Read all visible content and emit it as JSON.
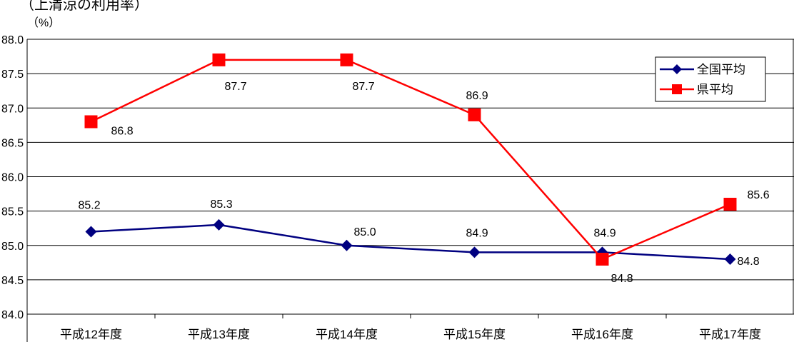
{
  "chart_data": {
    "type": "line",
    "title": "（上清涼の利用率）",
    "ylabel": "（%）",
    "xlabel": "",
    "categories": [
      "平成12年度",
      "平成13年度",
      "平成14年度",
      "平成15年度",
      "平成16年度",
      "平成17年度"
    ],
    "ylim": [
      84.0,
      88.0
    ],
    "yticks": [
      "84.0",
      "84.5",
      "85.0",
      "85.5",
      "86.0",
      "86.5",
      "87.0",
      "87.5",
      "88.0"
    ],
    "grid": true,
    "legend_position": "top-right",
    "series": [
      {
        "name": "全国平均",
        "values": [
          85.2,
          85.3,
          85.0,
          84.9,
          84.9,
          84.8
        ],
        "labels": [
          "85.2",
          "85.3",
          "85.0",
          "84.9",
          "84.9",
          "84.8"
        ],
        "color": "#000080",
        "marker": "diamond"
      },
      {
        "name": "県平均",
        "values": [
          86.8,
          87.7,
          87.7,
          86.9,
          84.8,
          85.6
        ],
        "labels": [
          "86.8",
          "87.7",
          "87.7",
          "86.9",
          "84.8",
          "85.6"
        ],
        "color": "#ff0000",
        "marker": "square"
      }
    ]
  }
}
